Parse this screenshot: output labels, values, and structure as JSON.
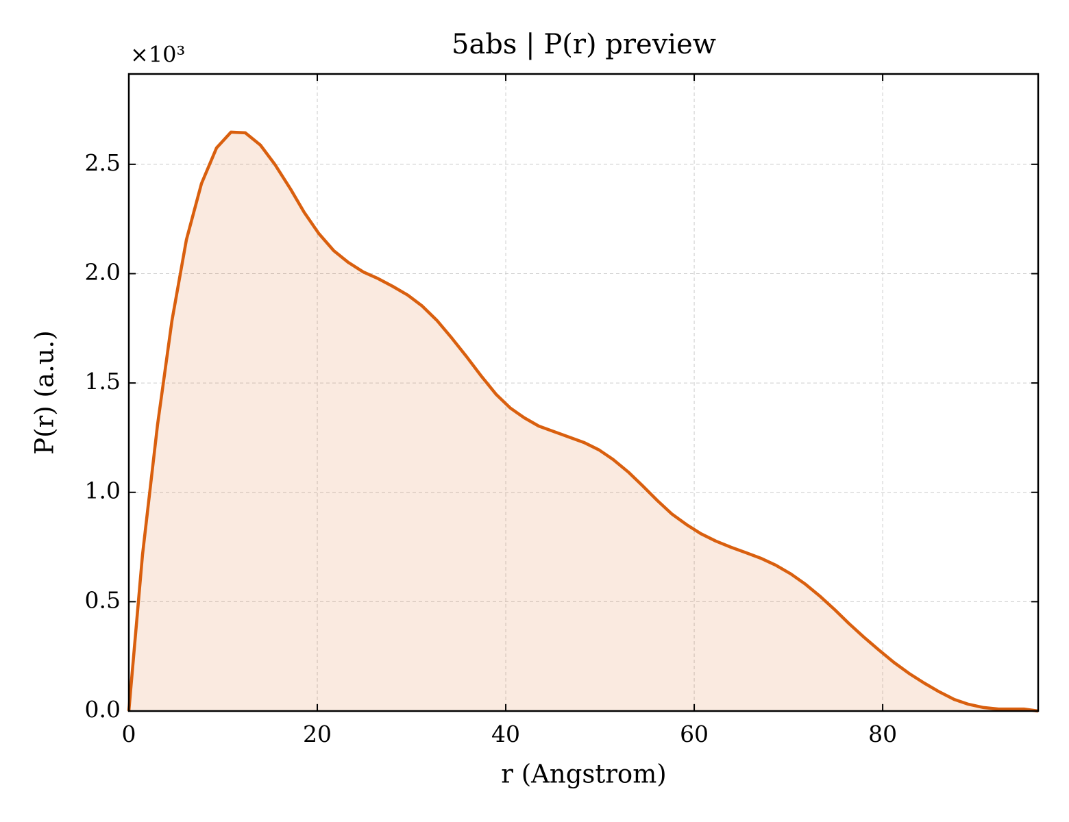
{
  "chart_data": {
    "type": "line",
    "title": "5abs | P(r) preview",
    "x_label": "r (Angstrom)",
    "y_label": "P(r) (a.u.)",
    "y_offset_label": "×10³",
    "x": [
      0,
      1.45,
      3.05,
      4.58,
      6.11,
      7.71,
      9.31,
      10.84,
      12.36,
      13.96,
      15.49,
      17.16,
      18.6,
      20.15,
      21.75,
      23.27,
      24.87,
      26.47,
      28.0,
      29.6,
      31.13,
      32.7,
      34.3,
      35.85,
      37.45,
      39.0,
      40.5,
      41.96,
      43.5,
      45.1,
      46.7,
      48.3,
      49.9,
      51.4,
      53.0,
      54.5,
      56.1,
      57.6,
      59.2,
      60.7,
      62.3,
      63.9,
      65.5,
      67.05,
      68.65,
      70.25,
      71.8,
      73.4,
      74.9,
      76.4,
      78.0,
      79.6,
      81.2,
      82.8,
      84.4,
      86.0,
      87.6,
      89.1,
      90.7,
      92.3,
      93.8,
      95.0,
      96.5
    ],
    "series": [
      {
        "color": "#d95f0e",
        "fill": true,
        "values": [
          0,
          0.714,
          1.31,
          1.786,
          2.155,
          2.412,
          2.575,
          2.647,
          2.644,
          2.588,
          2.5,
          2.387,
          2.281,
          2.184,
          2.105,
          2.052,
          2.008,
          1.977,
          1.942,
          1.902,
          1.852,
          1.786,
          1.704,
          1.62,
          1.529,
          1.447,
          1.385,
          1.341,
          1.303,
          1.278,
          1.253,
          1.228,
          1.194,
          1.15,
          1.093,
          1.031,
          0.962,
          0.902,
          0.852,
          0.811,
          0.777,
          0.749,
          0.724,
          0.699,
          0.667,
          0.627,
          0.58,
          0.523,
          0.464,
          0.401,
          0.338,
          0.279,
          0.222,
          0.172,
          0.128,
          0.088,
          0.053,
          0.031,
          0.016,
          0.009,
          0.009,
          0.009,
          0
        ]
      }
    ],
    "xlim": [
      0,
      96.5
    ],
    "ylim": [
      0,
      2.913
    ],
    "xticks": [
      0,
      20,
      40,
      60,
      80
    ],
    "yticks": [
      {
        "value": 0,
        "label": "0.0"
      },
      0.5,
      {
        "value": 1,
        "label": "1.0"
      },
      1.5,
      {
        "value": 2,
        "label": "2.0"
      },
      2.5
    ],
    "grid": true
  }
}
